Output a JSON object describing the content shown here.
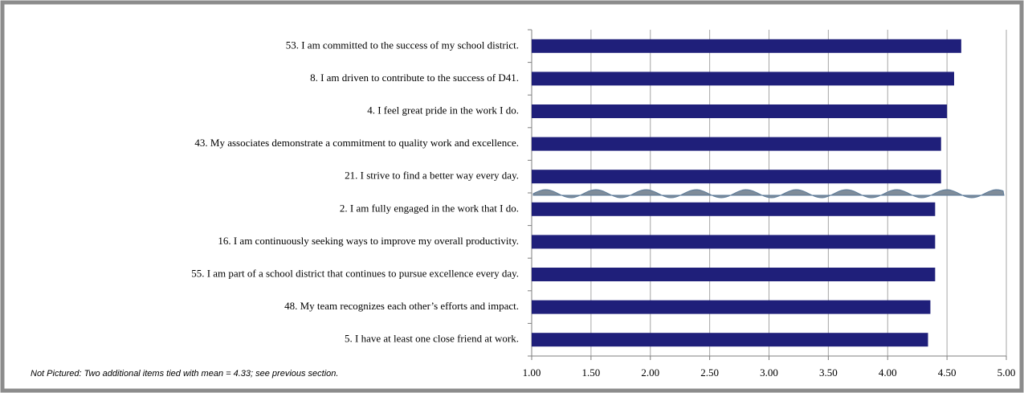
{
  "chart_data": {
    "type": "bar",
    "orientation": "horizontal",
    "categories": [
      "53. I am committed to the success of my school district.",
      "8. I am driven to contribute to the success of  D41.",
      "4. I feel great pride in the work I do.",
      "43. My associates demonstrate a commitment to quality work and excellence.",
      "21. I strive to find a better way every day.",
      "2. I am fully engaged in the work that I do.",
      "16. I am continuously seeking ways to improve my overall productivity.",
      "55. I am part of a school district that continues to pursue excellence every day.",
      "48. My team recognizes each other’s efforts and impact.",
      "5. I have at least one close friend at work."
    ],
    "values": [
      4.62,
      4.56,
      4.5,
      4.45,
      4.45,
      4.4,
      4.4,
      4.4,
      4.36,
      4.34
    ],
    "color": "#1f1f7a",
    "xlim": [
      1,
      5
    ],
    "xticks": [
      {
        "value": 1,
        "label": "1.00"
      },
      {
        "value": 1.5,
        "label": "1.50"
      },
      {
        "value": 2,
        "label": "2.00"
      },
      {
        "value": 2.5,
        "label": "2.50"
      },
      {
        "value": 3,
        "label": "3.00"
      },
      {
        "value": 3.5,
        "label": "3.50"
      },
      {
        "value": 4,
        "label": "4.00"
      },
      {
        "value": 4.5,
        "label": "4.50"
      },
      {
        "value": 5,
        "label": "5.00"
      }
    ],
    "grid": true,
    "annotation": "Not Pictured: Two additional items tied with mean = 4.33; see previous section."
  }
}
